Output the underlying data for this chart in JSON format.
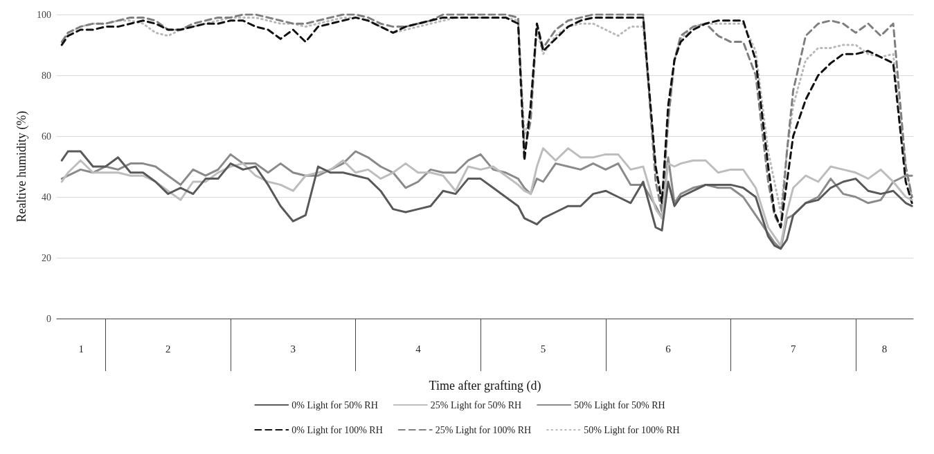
{
  "chart_data": {
    "type": "line",
    "xlabel": "Time after grafting (d)",
    "ylabel": "Realtive humidity (%)",
    "x": [
      1.15,
      1.2,
      1.3,
      1.4,
      1.5,
      1.6,
      1.7,
      1.8,
      1.9,
      2.0,
      2.1,
      2.2,
      2.3,
      2.4,
      2.5,
      2.6,
      2.7,
      2.8,
      2.9,
      3.0,
      3.1,
      3.2,
      3.3,
      3.4,
      3.5,
      3.6,
      3.7,
      3.8,
      3.9,
      4.0,
      4.1,
      4.2,
      4.3,
      4.4,
      4.5,
      4.6,
      4.7,
      4.8,
      4.85,
      4.9,
      4.95,
      5.0,
      5.1,
      5.2,
      5.3,
      5.4,
      5.5,
      5.6,
      5.7,
      5.8,
      5.9,
      5.95,
      6.0,
      6.05,
      6.1,
      6.2,
      6.3,
      6.4,
      6.5,
      6.6,
      6.7,
      6.8,
      6.85,
      6.9,
      6.95,
      7.0,
      7.1,
      7.2,
      7.3,
      7.4,
      7.5,
      7.6,
      7.7,
      7.8,
      7.9,
      7.95
    ],
    "series": [
      {
        "name": "0% Light for 50% RH",
        "color": "#595959",
        "line_style": "solid",
        "values": [
          52,
          55,
          55,
          50,
          50,
          53,
          48,
          48,
          45,
          41,
          43,
          41,
          46,
          46,
          51,
          49,
          50,
          44,
          37,
          32,
          34,
          50,
          48,
          48,
          47,
          46,
          42,
          36,
          35,
          36,
          37,
          42,
          41,
          46,
          46,
          43,
          40,
          37,
          33,
          32,
          31,
          33,
          35,
          37,
          37,
          41,
          42,
          40,
          38,
          45,
          30,
          29,
          45,
          37,
          40,
          42,
          44,
          44,
          44,
          43,
          40,
          27,
          24,
          23,
          26,
          34,
          38,
          39,
          43,
          45,
          46,
          42,
          41,
          42,
          38,
          37
        ]
      },
      {
        "name": "25% Light for 50% RH",
        "color": "#bdbdbd",
        "line_style": "solid",
        "values": [
          45,
          48,
          52,
          48,
          48,
          48,
          47,
          47,
          45,
          42,
          39,
          45,
          45,
          48,
          50,
          51,
          47,
          45,
          44,
          42,
          47,
          48,
          49,
          52,
          48,
          49,
          46,
          48,
          51,
          48,
          48,
          47,
          42,
          50,
          49,
          50,
          47,
          44,
          42,
          41,
          50,
          56,
          52,
          56,
          53,
          53,
          54,
          54,
          49,
          50,
          36,
          33,
          51,
          50,
          51,
          52,
          52,
          48,
          49,
          49,
          43,
          30,
          27,
          24,
          35,
          43,
          47,
          45,
          50,
          49,
          48,
          46,
          49,
          45,
          40,
          39
        ]
      },
      {
        "name": "50% Light for 50% RH",
        "color": "#8a8a8a",
        "line_style": "solid",
        "values": [
          46,
          47,
          49,
          48,
          50,
          49,
          51,
          51,
          50,
          47,
          44,
          49,
          47,
          49,
          54,
          51,
          51,
          48,
          51,
          48,
          47,
          47,
          49,
          51,
          55,
          53,
          50,
          48,
          43,
          45,
          49,
          48,
          48,
          52,
          54,
          49,
          48,
          46,
          43,
          41,
          46,
          45,
          51,
          50,
          49,
          51,
          49,
          51,
          44,
          44,
          37,
          33,
          53,
          38,
          41,
          43,
          44,
          43,
          43,
          40,
          34,
          28,
          25,
          23,
          33,
          34,
          38,
          40,
          46,
          41,
          40,
          38,
          39,
          45,
          47,
          47
        ]
      },
      {
        "name": "0% Light for 100% RH",
        "color": "#111111",
        "line_style": "dashed",
        "values": [
          90,
          93,
          95,
          95,
          96,
          96,
          97,
          98,
          97,
          95,
          95,
          96,
          97,
          97,
          98,
          98,
          96,
          95,
          92,
          95,
          91,
          96,
          97,
          98,
          99,
          98,
          96,
          94,
          96,
          97,
          98,
          99,
          99,
          99,
          99,
          99,
          99,
          97,
          52,
          70,
          97,
          88,
          92,
          96,
          98,
          99,
          99,
          99,
          99,
          99,
          50,
          38,
          70,
          85,
          91,
          95,
          97,
          98,
          98,
          98,
          85,
          50,
          35,
          30,
          45,
          60,
          72,
          80,
          84,
          87,
          87,
          88,
          86,
          84,
          45,
          38
        ]
      },
      {
        "name": "25% Light for 100% RH",
        "color": "#7f7f7f",
        "line_style": "dashed",
        "values": [
          91,
          94,
          96,
          97,
          97,
          98,
          99,
          99,
          98,
          95,
          95,
          97,
          98,
          99,
          99,
          100,
          100,
          99,
          98,
          97,
          97,
          98,
          99,
          100,
          100,
          99,
          97,
          96,
          96,
          97,
          98,
          100,
          100,
          100,
          100,
          100,
          100,
          99,
          55,
          65,
          97,
          89,
          95,
          98,
          99,
          100,
          100,
          100,
          100,
          100,
          45,
          35,
          65,
          85,
          93,
          96,
          97,
          93,
          91,
          91,
          80,
          45,
          34,
          30,
          55,
          75,
          93,
          97,
          98,
          97,
          94,
          97,
          93,
          97,
          50,
          40
        ]
      },
      {
        "name": "50% Light for 100% RH",
        "color": "#b8b8b8",
        "line_style": "dotted",
        "values": [
          90,
          94,
          96,
          97,
          97,
          98,
          98,
          97,
          94,
          93,
          95,
          96,
          97,
          98,
          99,
          99,
          99,
          98,
          97,
          97,
          96,
          97,
          98,
          99,
          99,
          98,
          96,
          94,
          95,
          96,
          97,
          98,
          99,
          99,
          99,
          99,
          99,
          98,
          60,
          68,
          95,
          87,
          93,
          96,
          97,
          97,
          95,
          93,
          96,
          96,
          50,
          40,
          65,
          85,
          92,
          96,
          97,
          97,
          97,
          97,
          88,
          55,
          45,
          35,
          55,
          70,
          85,
          89,
          89,
          90,
          90,
          87,
          86,
          87,
          50,
          40
        ]
      }
    ],
    "xlim": [
      1.11,
      7.96
    ],
    "xticks": [
      {
        "value": 1.305,
        "label": "1"
      },
      {
        "value": 1.5,
        "label": null
      },
      2,
      {
        "value": 2.5,
        "label": null
      },
      3,
      {
        "value": 3.5,
        "label": null
      },
      4,
      {
        "value": 4.5,
        "label": null
      },
      5,
      {
        "value": 5.5,
        "label": null
      },
      6,
      {
        "value": 6.5,
        "label": null
      },
      7,
      {
        "value": 7.5,
        "label": null
      },
      {
        "value": 7.73,
        "label": "8"
      }
    ],
    "ylim": [
      0,
      100
    ],
    "yticks": [
      0,
      20,
      40,
      60,
      80,
      100
    ],
    "grid": "y",
    "legend": "bottom",
    "marker": "none"
  }
}
